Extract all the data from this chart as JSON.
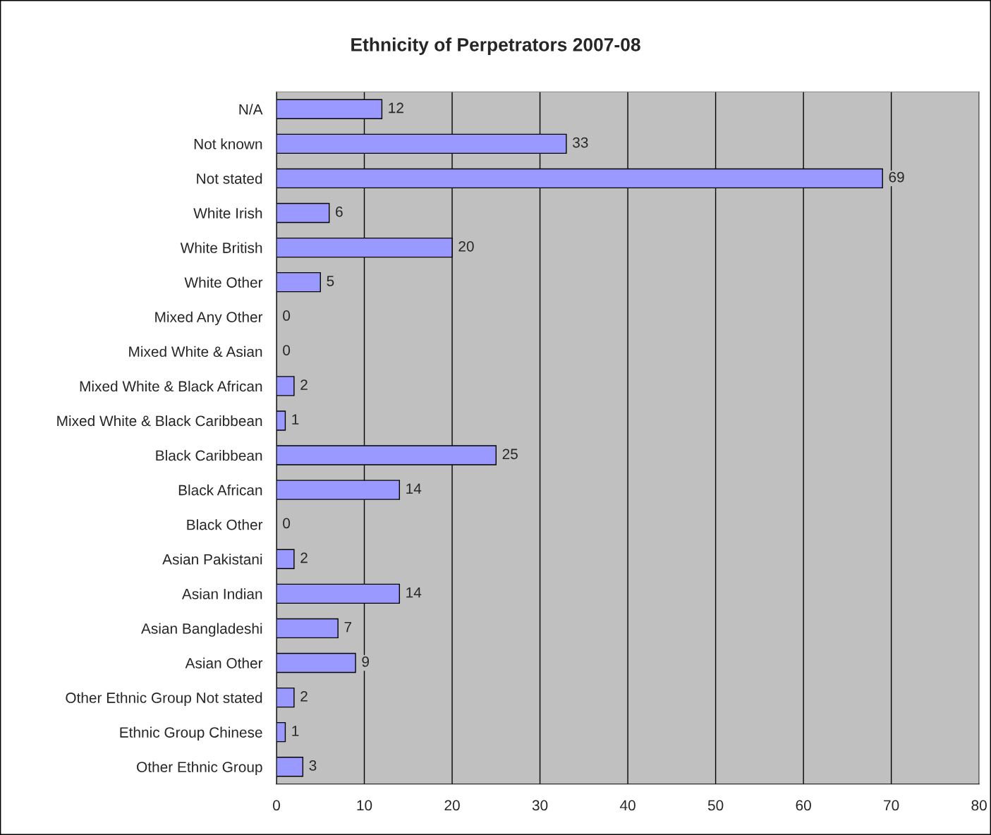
{
  "chart_data": {
    "type": "bar",
    "orientation": "horizontal",
    "title": "Ethnicity of Perpetrators 2007-08",
    "categories": [
      "N/A",
      "Not known",
      "Not stated",
      "White Irish",
      "White British",
      "White Other",
      "Mixed Any Other",
      "Mixed White & Asian",
      "Mixed White & Black African",
      "Mixed White & Black Caribbean",
      "Black Caribbean",
      "Black African",
      "Black Other",
      "Asian Pakistani",
      "Asian Indian",
      "Asian Bangladeshi",
      "Asian Other",
      "Other Ethnic Group Not stated",
      "Ethnic Group Chinese",
      "Other Ethnic Group"
    ],
    "values": [
      12,
      33,
      69,
      6,
      20,
      5,
      0,
      0,
      2,
      1,
      25,
      14,
      0,
      2,
      14,
      7,
      9,
      2,
      1,
      3
    ],
    "color": "#9999ff",
    "xlim": [
      0,
      80
    ],
    "xticks": [
      0,
      10,
      20,
      30,
      40,
      50,
      60,
      70,
      80
    ],
    "grid": "x",
    "data_labels": true
  }
}
